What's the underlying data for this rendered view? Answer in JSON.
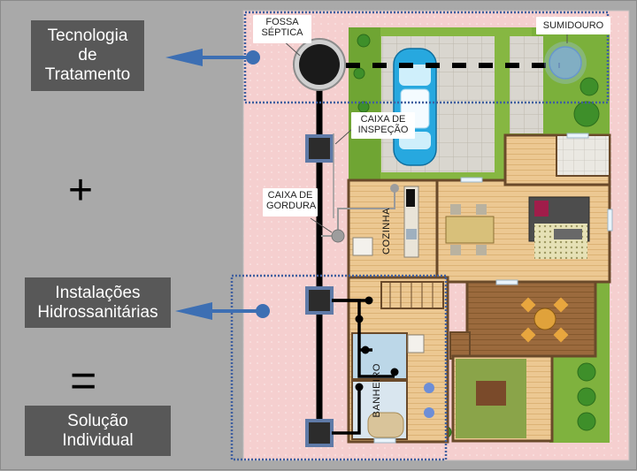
{
  "left_labels": {
    "treatment": "Tecnologia\nde\nTratamento",
    "plumbing": "Instalações\nHidrossanitárias",
    "solution": "Solução\nIndividual"
  },
  "symbols": {
    "plus": "+",
    "equals": "="
  },
  "callouts": {
    "septic_tank": "FOSSA\nSÉPTICA",
    "soakaway": "SUMIDOURO",
    "inspection_box": "CAIXA DE\nINSPEÇÃO",
    "grease_trap": "CAIXA DE\nGORDURA"
  },
  "room_labels": {
    "kitchen": "COZINHA",
    "bathroom": "BANHEIRO"
  },
  "colors": {
    "label_bg": "#585858",
    "arrow": "#3d6fb3",
    "lot": "#f6d2d2",
    "lawn": "#7fb23e",
    "floor_wood": "#e8c58f",
    "wall": "#6a4a2a",
    "pipe": "#000000",
    "highlight_border": "#3f5f9f"
  }
}
